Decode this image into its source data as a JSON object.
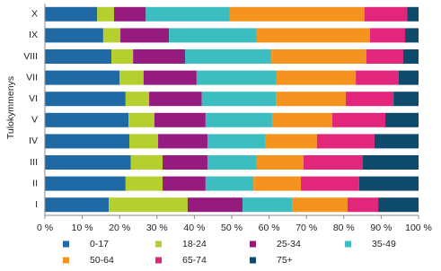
{
  "chart_data": {
    "type": "stacked-barh",
    "y_label": "Tulokymmenys",
    "categories": [
      "X",
      "IX",
      "VIII",
      "VII",
      "VI",
      "V",
      "IV",
      "III",
      "II",
      "I"
    ],
    "series": [
      {
        "name": "0-17",
        "color": "#1f6aa5",
        "values": [
          14,
          15.6,
          17.8,
          20,
          21.6,
          22.4,
          22.6,
          23,
          21.6,
          17.1
        ]
      },
      {
        "name": "18-24",
        "color": "#b5cf2f",
        "values": [
          4.5,
          4.6,
          5.8,
          6.4,
          6.3,
          6.9,
          7.7,
          8.5,
          9.9,
          21.1
        ]
      },
      {
        "name": "25-34",
        "color": "#951b7e",
        "values": [
          8.5,
          13,
          13.9,
          14.2,
          14.1,
          13.7,
          13.2,
          12,
          11.5,
          14.7
        ]
      },
      {
        "name": "35-49",
        "color": "#3cbdbf",
        "values": [
          22.5,
          23.5,
          23.1,
          21.4,
          19.8,
          17.8,
          15.6,
          13.2,
          12.8,
          13.4
        ]
      },
      {
        "name": "50-64",
        "color": "#f5931f",
        "values": [
          36,
          30.3,
          25.4,
          21.2,
          18.7,
          16.1,
          13.7,
          12.5,
          12.7,
          14.7
        ]
      },
      {
        "name": "65-74",
        "color": "#e2267b",
        "values": [
          11.5,
          9.4,
          9.9,
          11.5,
          12.8,
          14.2,
          15.4,
          15.9,
          15.6,
          8.2
        ]
      },
      {
        "name": "75+",
        "color": "#0e4a6b",
        "values": [
          3,
          3.6,
          4.1,
          5.3,
          6.7,
          8.9,
          11.8,
          14.9,
          15.9,
          10.8
        ]
      }
    ],
    "xlim": [
      0,
      100
    ],
    "xticks": [
      {
        "value": 0,
        "label": "0 %"
      },
      {
        "value": 10,
        "label": "10 %"
      },
      {
        "value": 20,
        "label": "20 %"
      },
      {
        "value": 30,
        "label": "30 %"
      },
      {
        "value": 40,
        "label": "40 %"
      },
      {
        "value": 50,
        "label": "50 %"
      },
      {
        "value": 60,
        "label": "60 %"
      },
      {
        "value": 70,
        "label": "70 %"
      },
      {
        "value": 80,
        "label": "80 %"
      },
      {
        "value": 90,
        "label": "90 %"
      },
      {
        "value": 100,
        "label": "100 %"
      }
    ],
    "legend": "bottom"
  }
}
